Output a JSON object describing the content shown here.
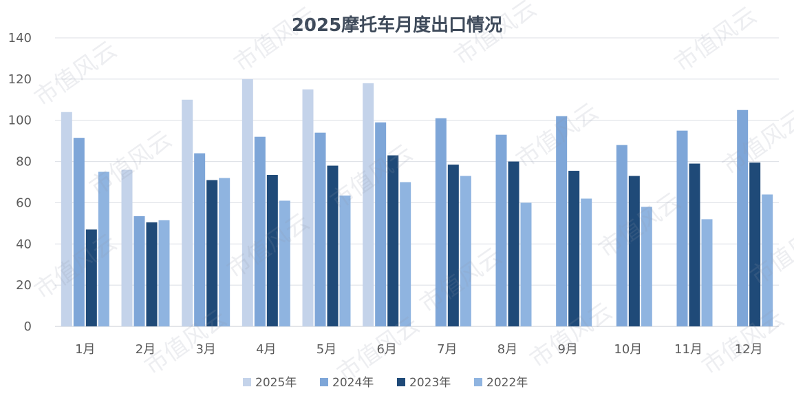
{
  "chart_data": {
    "type": "bar",
    "title": "2025摩托车月度出口情况",
    "categories": [
      "1月",
      "2月",
      "3月",
      "4月",
      "5月",
      "6月",
      "7月",
      "8月",
      "9月",
      "10月",
      "11月",
      "12月"
    ],
    "ylim": [
      0,
      140
    ],
    "yticks": [
      0,
      20,
      40,
      60,
      80,
      100,
      120,
      140
    ],
    "grid": true,
    "legend_position": "bottom",
    "series": [
      {
        "name": "2025年",
        "color": "#c4d3ea",
        "values": [
          104,
          76,
          110,
          120,
          115,
          118,
          null,
          null,
          null,
          null,
          null,
          null
        ]
      },
      {
        "name": "2024年",
        "color": "#7ea6d8",
        "values": [
          91.5,
          53.5,
          84,
          92,
          94,
          99,
          101,
          93,
          102,
          88,
          95,
          105
        ]
      },
      {
        "name": "2023年",
        "color": "#1f4a78",
        "values": [
          47,
          50.5,
          71,
          73.5,
          78,
          83,
          78.5,
          80,
          75.5,
          73,
          79,
          79.5
        ]
      },
      {
        "name": "2022年",
        "color": "#8fb4e0",
        "values": [
          75,
          51.5,
          72,
          61,
          63.5,
          70,
          73,
          60,
          62,
          58,
          52,
          64
        ]
      }
    ]
  },
  "watermark_text": "市值风云",
  "colors": {
    "title": "#3e4a5a",
    "axis_text": "#5a5a5a",
    "grid": "#dcdfe5"
  }
}
